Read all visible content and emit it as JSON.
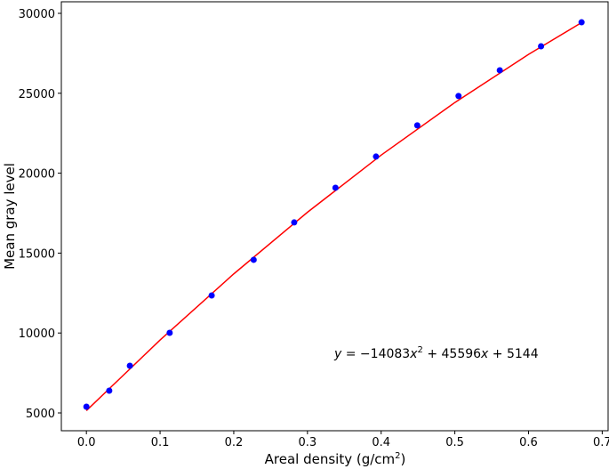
{
  "chart_data": {
    "type": "scatter",
    "x_label": [
      "Areal density (g/cm",
      "2",
      ")"
    ],
    "y_label": "Mean gray level",
    "annotation": [
      "y",
      " = −14083",
      "x",
      "2",
      " + 45596",
      "x",
      " + 5144"
    ],
    "series": [
      {
        "color": "#0000ff",
        "x": [
          0,
          0.031,
          0.059,
          0.113,
          0.17,
          0.227,
          0.282,
          0.338,
          0.393,
          0.449,
          0.505,
          0.561,
          0.617,
          0.672
        ],
        "values": [
          5390,
          6390,
          7950,
          10010,
          12350,
          14580,
          16920,
          19090,
          21040,
          22990,
          24830,
          26440,
          27940,
          29440
        ]
      }
    ],
    "fit": {
      "color": "#ff0000",
      "x": [
        0,
        0.1,
        0.2,
        0.3,
        0.4,
        0.5,
        0.6,
        0.675
      ],
      "values": [
        5144,
        9563,
        13700,
        17555,
        21129,
        24421,
        27432,
        29505
      ]
    },
    "xlim": [
      -0.034,
      0.708
    ],
    "ylim": [
      3886,
      30724
    ],
    "xticks": [
      {
        "value": 0,
        "label": "0.0"
      },
      0.1,
      0.2,
      0.3,
      0.4,
      0.5,
      0.6,
      0.7
    ],
    "yticks": [
      5000,
      10000,
      15000,
      20000,
      25000,
      30000
    ]
  }
}
